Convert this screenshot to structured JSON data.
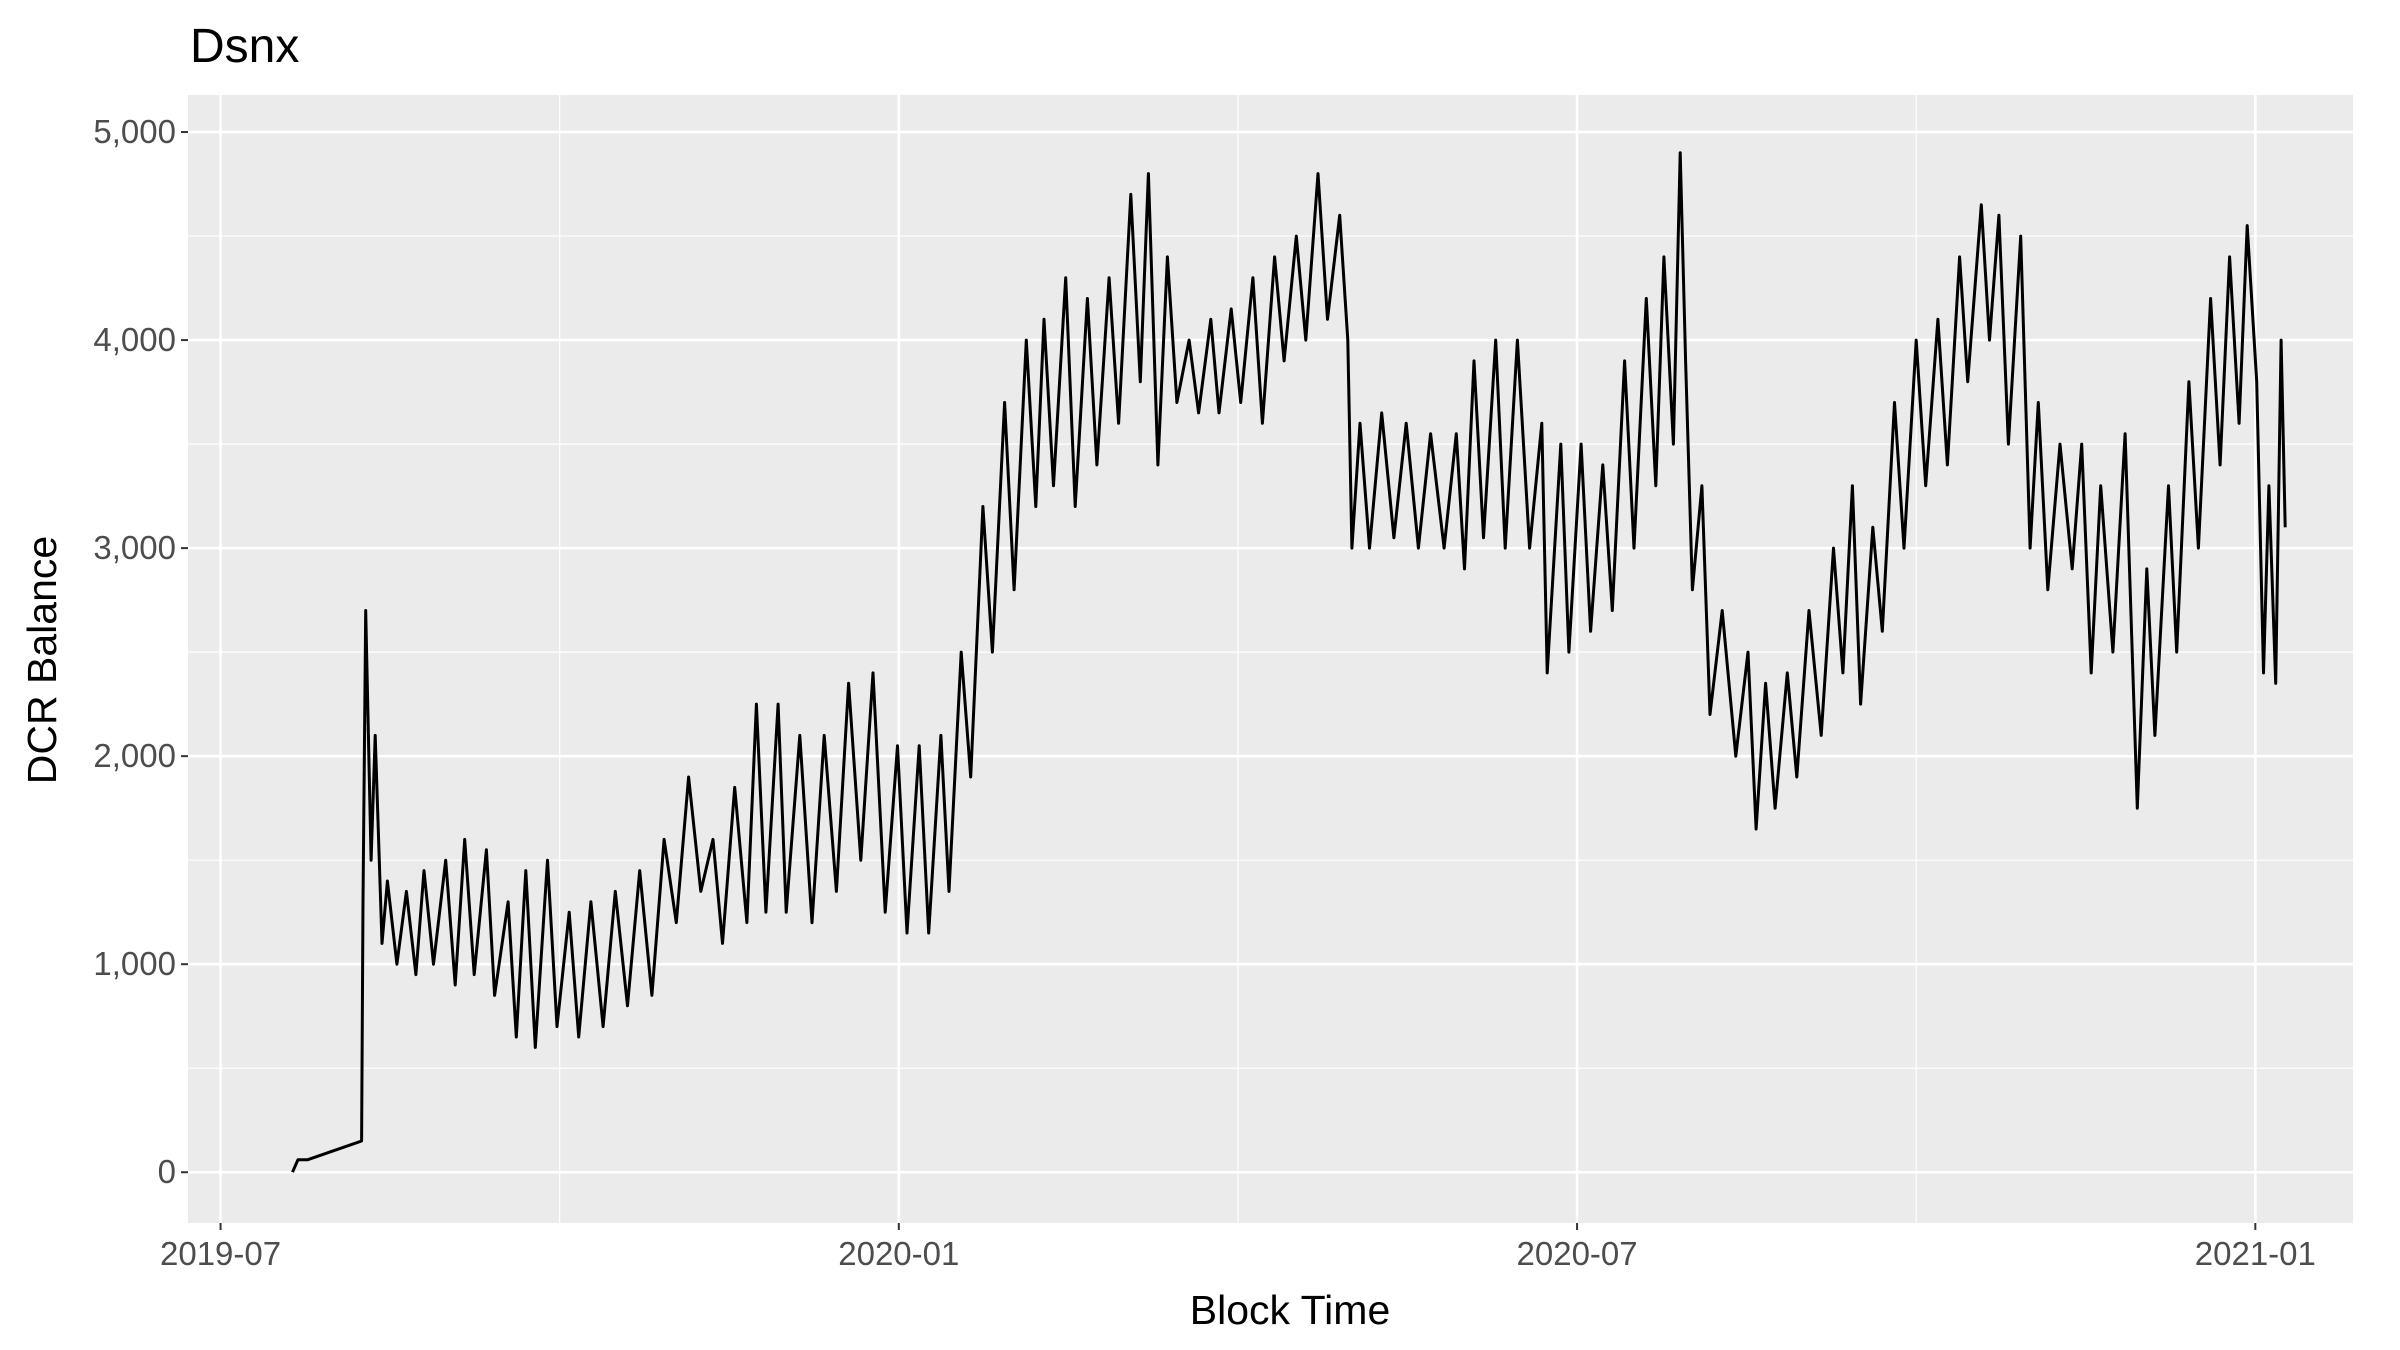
{
  "chart_data": {
    "type": "line",
    "title": "Dsnx",
    "x_label": "Block Time",
    "y_label": "DCR Balance",
    "color": "#000000",
    "grid": true,
    "xlim": [
      2019.476,
      2021.072
    ],
    "ylim": [
      -244,
      5178
    ],
    "xticks": [
      {
        "value": 2019.5,
        "label": "2019-07"
      },
      {
        "value": 2020.0,
        "label": "2020-01"
      },
      {
        "value": 2020.5,
        "label": "2020-07"
      },
      {
        "value": 2021.0,
        "label": "2021-01"
      }
    ],
    "yticks": [
      0,
      {
        "value": 1000,
        "label": "1,000"
      },
      {
        "value": 2000,
        "label": "2,000"
      },
      {
        "value": 3000,
        "label": "3,000"
      },
      {
        "value": 4000,
        "label": "4,000"
      },
      {
        "value": 5000,
        "label": "5,000"
      }
    ],
    "x": [
      2019.553,
      2019.557,
      2019.564,
      2019.604,
      2019.605,
      2019.607,
      2019.611,
      2019.614,
      2019.619,
      2019.623,
      2019.63,
      2019.637,
      2019.644,
      2019.65,
      2019.657,
      2019.666,
      2019.673,
      2019.68,
      2019.687,
      2019.696,
      2019.702,
      2019.712,
      2019.718,
      2019.725,
      2019.732,
      2019.741,
      2019.748,
      2019.757,
      2019.764,
      2019.773,
      2019.782,
      2019.791,
      2019.8,
      2019.809,
      2019.818,
      2019.827,
      2019.836,
      2019.845,
      2019.854,
      2019.863,
      2019.87,
      2019.879,
      2019.888,
      2019.895,
      2019.902,
      2019.911,
      2019.917,
      2019.927,
      2019.936,
      2019.945,
      2019.954,
      2019.963,
      2019.972,
      2019.981,
      2019.99,
      2019.999,
      2020.006,
      2020.015,
      2020.022,
      2020.031,
      2020.037,
      2020.046,
      2020.053,
      2020.062,
      2020.069,
      2020.078,
      2020.085,
      2020.094,
      2020.101,
      2020.107,
      2020.114,
      2020.123,
      2020.13,
      2020.139,
      2020.146,
      2020.155,
      2020.162,
      2020.171,
      2020.178,
      2020.184,
      2020.191,
      2020.198,
      2020.205,
      2020.214,
      2020.221,
      2020.23,
      2020.236,
      2020.245,
      2020.252,
      2020.261,
      2020.268,
      2020.277,
      2020.284,
      2020.293,
      2020.3,
      2020.309,
      2020.316,
      2020.325,
      2020.331,
      2020.334,
      2020.34,
      2020.347,
      2020.356,
      2020.365,
      2020.374,
      2020.383,
      2020.392,
      2020.402,
      2020.411,
      2020.417,
      2020.424,
      2020.431,
      2020.44,
      2020.447,
      2020.456,
      2020.465,
      2020.474,
      2020.478,
      2020.488,
      2020.494,
      2020.503,
      2020.51,
      2020.519,
      2020.526,
      2020.535,
      2020.542,
      2020.551,
      2020.558,
      2020.564,
      2020.571,
      2020.576,
      2020.58,
      2020.585,
      2020.592,
      2020.598,
      2020.607,
      2020.617,
      2020.626,
      2020.632,
      2020.639,
      2020.646,
      2020.655,
      2020.662,
      2020.671,
      2020.68,
      2020.689,
      2020.696,
      2020.703,
      2020.709,
      2020.718,
      2020.725,
      2020.734,
      2020.741,
      2020.75,
      2020.757,
      2020.766,
      2020.773,
      2020.782,
      2020.788,
      2020.798,
      2020.804,
      2020.811,
      2020.818,
      2020.827,
      2020.834,
      2020.84,
      2020.847,
      2020.856,
      2020.865,
      2020.872,
      2020.879,
      2020.886,
      2020.895,
      2020.904,
      2020.913,
      2020.92,
      2020.926,
      2020.936,
      2020.942,
      2020.951,
      2020.958,
      2020.967,
      2020.974,
      2020.981,
      2020.988,
      2020.994,
      2021.001,
      2021.006,
      2021.01,
      2021.015,
      2021.019,
      2021.022
    ],
    "values": [
      0,
      60,
      60,
      150,
      1300,
      2700,
      1500,
      2100,
      1100,
      1400,
      1000,
      1350,
      950,
      1450,
      1000,
      1500,
      900,
      1600,
      950,
      1550,
      850,
      1300,
      650,
      1450,
      600,
      1500,
      700,
      1250,
      650,
      1300,
      700,
      1350,
      800,
      1450,
      850,
      1600,
      1200,
      1900,
      1350,
      1600,
      1100,
      1850,
      1200,
      2250,
      1250,
      2250,
      1250,
      2100,
      1200,
      2100,
      1350,
      2350,
      1500,
      2400,
      1250,
      2050,
      1150,
      2050,
      1150,
      2100,
      1350,
      2500,
      1900,
      3200,
      2500,
      3700,
      2800,
      4000,
      3200,
      4100,
      3300,
      4300,
      3200,
      4200,
      3400,
      4300,
      3600,
      4700,
      3800,
      4800,
      3400,
      4400,
      3700,
      4000,
      3650,
      4100,
      3650,
      4150,
      3700,
      4300,
      3600,
      4400,
      3900,
      4500,
      4000,
      4800,
      4100,
      4600,
      4000,
      3000,
      3600,
      3000,
      3650,
      3050,
      3600,
      3000,
      3550,
      3000,
      3550,
      2900,
      3900,
      3050,
      4000,
      3000,
      4000,
      3000,
      3600,
      2400,
      3500,
      2500,
      3500,
      2600,
      3400,
      2700,
      3900,
      3000,
      4200,
      3300,
      4400,
      3500,
      4900,
      3900,
      2800,
      3300,
      2200,
      2700,
      2000,
      2500,
      1650,
      2350,
      1750,
      2400,
      1900,
      2700,
      2100,
      3000,
      2400,
      3300,
      2250,
      3100,
      2600,
      3700,
      3000,
      4000,
      3300,
      4100,
      3400,
      4400,
      3800,
      4650,
      4000,
      4600,
      3500,
      4500,
      3000,
      3700,
      2800,
      3500,
      2900,
      3500,
      2400,
      3300,
      2500,
      3550,
      1750,
      2900,
      2100,
      3300,
      2500,
      3800,
      3000,
      4200,
      3400,
      4400,
      3600,
      4550,
      3800,
      2400,
      3300,
      2350,
      4000,
      3100
    ]
  }
}
